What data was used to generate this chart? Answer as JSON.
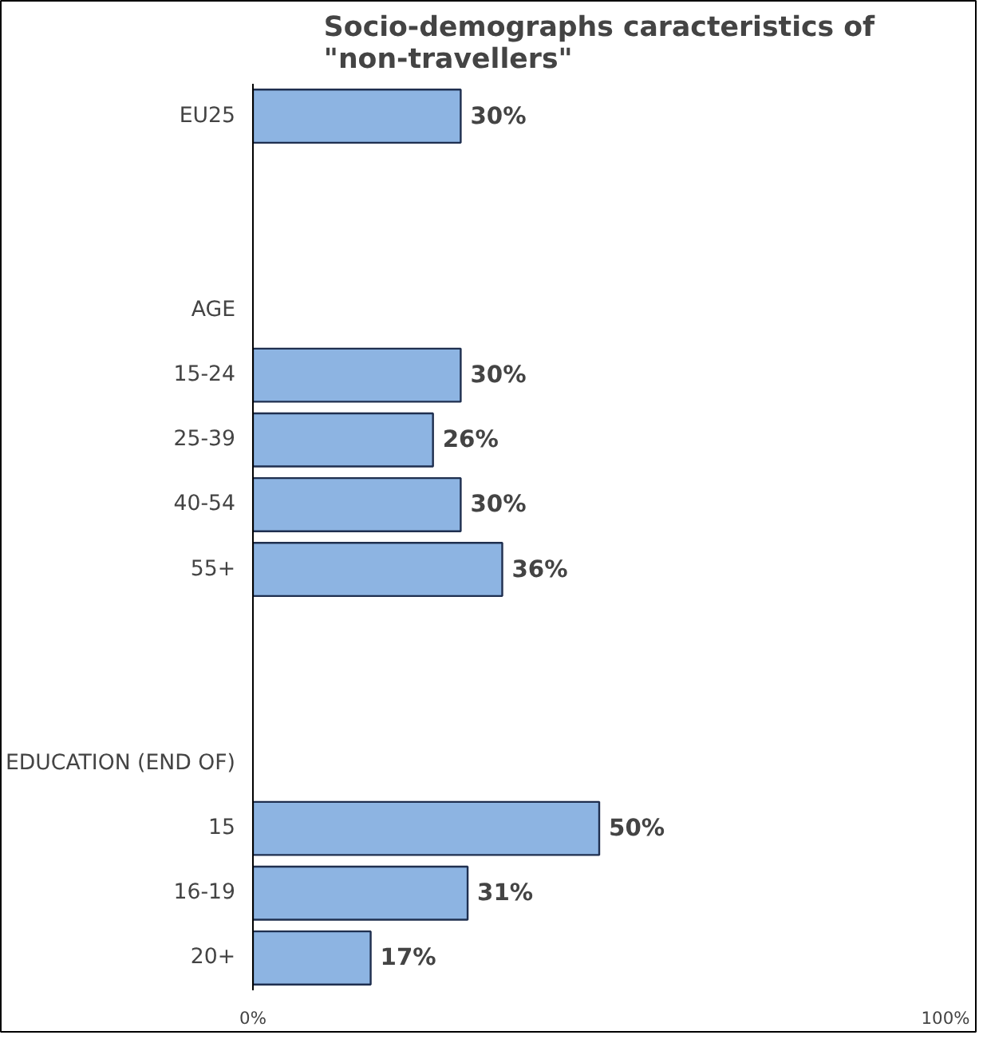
{
  "chart_data": {
    "type": "bar",
    "orientation": "horizontal",
    "title": "Socio-demographs caracteristics of \"non-travellers\"",
    "categories": [
      "EU25",
      null,
      null,
      "AGE",
      "15-24",
      "25-39",
      "40-54",
      "55+",
      null,
      null,
      "EDUCATION (END OF)",
      "15",
      "16-19",
      "20+"
    ],
    "values": [
      30,
      null,
      null,
      null,
      30,
      26,
      30,
      36,
      null,
      null,
      null,
      50,
      31,
      17
    ],
    "value_labels": [
      "30%",
      null,
      null,
      null,
      "30%",
      "26%",
      "30%",
      "36%",
      null,
      null,
      null,
      "50%",
      "31%",
      "17%"
    ],
    "color": "#8db4e2",
    "xlim": [
      0,
      100
    ],
    "xticks": [
      {
        "value": 0,
        "label": "0%"
      },
      {
        "value": 100,
        "label": "100%"
      }
    ],
    "grid": false
  }
}
